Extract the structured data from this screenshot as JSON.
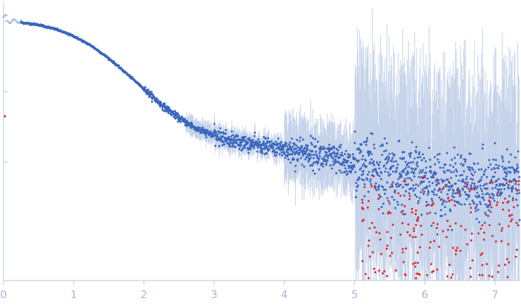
{
  "chart_data": {
    "type": "scatter",
    "title": "",
    "xlabel": "",
    "ylabel": "",
    "y_scale": "log",
    "grid": false,
    "legend": "none",
    "xlim": [
      0,
      7.35
    ],
    "x_ticks": [
      {
        "value": 0,
        "label": "0"
      },
      {
        "value": 1,
        "label": "1"
      },
      {
        "value": 2,
        "label": "2"
      },
      {
        "value": 3,
        "label": "3"
      },
      {
        "value": 4,
        "label": "4"
      },
      {
        "value": 5,
        "label": "5"
      },
      {
        "value": 6,
        "label": "6"
      },
      {
        "value": 7,
        "label": "7"
      }
    ],
    "y_tick_count": 3,
    "colors": {
      "axis": "#b7c5de",
      "tick_label": "#a8b8d4",
      "point": "#3a66be",
      "error_bar": "#c4d2ea",
      "negative_point": "#e0262a",
      "excluded_point": "#a9bfe6"
    },
    "series": [
      {
        "role": "intensity_points",
        "curve_samples": [
          {
            "x": 0.25,
            "y": 1.0
          },
          {
            "x": 0.5,
            "y": 0.93
          },
          {
            "x": 0.75,
            "y": 0.8
          },
          {
            "x": 1.0,
            "y": 0.64
          },
          {
            "x": 1.25,
            "y": 0.47
          },
          {
            "x": 1.5,
            "y": 0.31
          },
          {
            "x": 1.75,
            "y": 0.19
          },
          {
            "x": 2.0,
            "y": 0.115
          },
          {
            "x": 2.25,
            "y": 0.068
          },
          {
            "x": 2.5,
            "y": 0.044
          },
          {
            "x": 2.75,
            "y": 0.031
          },
          {
            "x": 3.0,
            "y": 0.025
          },
          {
            "x": 3.25,
            "y": 0.021
          },
          {
            "x": 3.5,
            "y": 0.019
          },
          {
            "x": 3.75,
            "y": 0.0175
          },
          {
            "x": 4.0,
            "y": 0.016
          },
          {
            "x": 4.25,
            "y": 0.0148
          },
          {
            "x": 4.5,
            "y": 0.013
          },
          {
            "x": 4.75,
            "y": 0.0112
          },
          {
            "x": 5.0,
            "y": 0.0095
          },
          {
            "x": 5.25,
            "y": 0.0082
          },
          {
            "x": 5.5,
            "y": 0.0072
          },
          {
            "x": 6.0,
            "y": 0.0058
          },
          {
            "x": 6.5,
            "y": 0.005
          },
          {
            "x": 7.0,
            "y": 0.0048
          },
          {
            "x": 7.35,
            "y": 0.0055
          }
        ]
      },
      {
        "role": "excluded_low_q_points",
        "x_range": [
          0,
          0.25
        ]
      },
      {
        "role": "negative_or_outlier_points",
        "x_range": [
          5.1,
          7.35
        ]
      }
    ]
  }
}
